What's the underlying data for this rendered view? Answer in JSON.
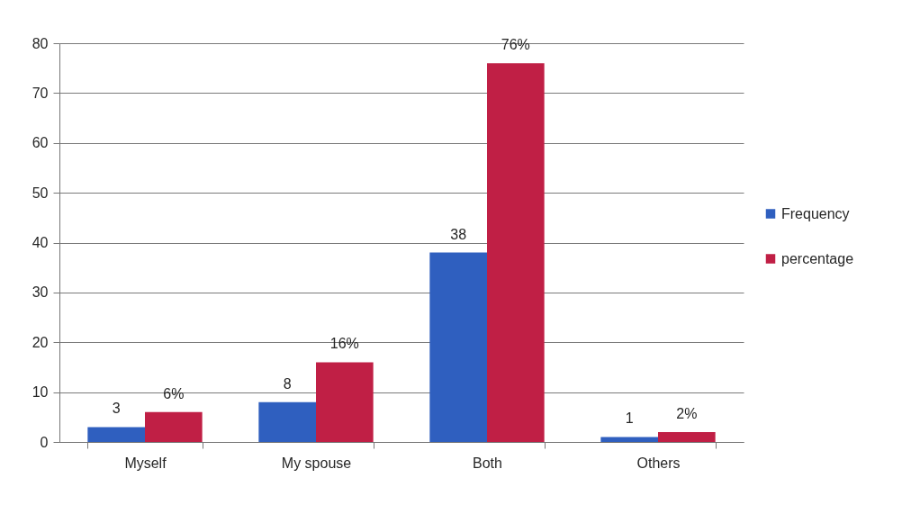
{
  "chart_data": {
    "type": "bar",
    "categories": [
      "Myself",
      "My spouse",
      "Both",
      "Others"
    ],
    "series": [
      {
        "name": "Frequency",
        "color": "#2f5fbf",
        "values": [
          3,
          8,
          38,
          1
        ],
        "value_labels": [
          "3",
          "8",
          "38",
          "1"
        ]
      },
      {
        "name": "percentage",
        "color": "#c01f45",
        "values": [
          6,
          16,
          76,
          2
        ],
        "value_labels": [
          "6%",
          "16%",
          "76%",
          "2%"
        ]
      }
    ],
    "ylim": [
      0,
      80
    ],
    "yticks": [
      0,
      10,
      20,
      30,
      40,
      50,
      60,
      70,
      80
    ],
    "grid": "y",
    "legend": "right"
  }
}
